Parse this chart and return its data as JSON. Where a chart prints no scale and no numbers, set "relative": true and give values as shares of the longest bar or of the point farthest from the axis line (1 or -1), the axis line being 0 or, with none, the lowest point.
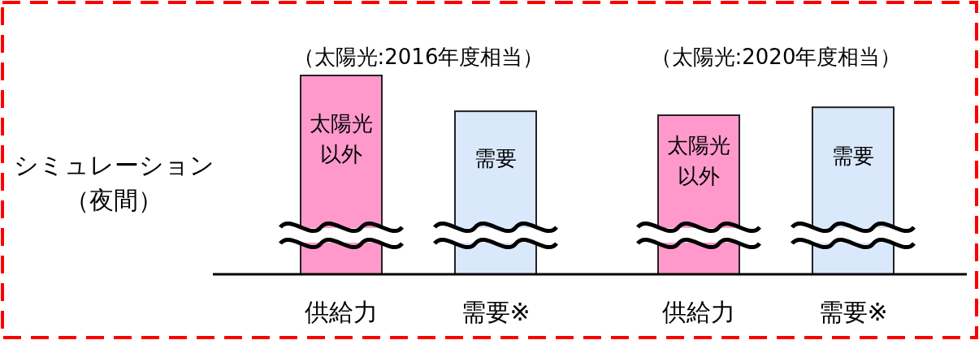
{
  "chart_data": {
    "type": "bar",
    "relative": true,
    "ylabel": "シミュレーション（夜間）",
    "categories": [
      "供給力",
      "需要※",
      "供給力",
      "需要※"
    ],
    "series": [
      {
        "name": "太陽光以外",
        "color": "#ff99cc",
        "values": [
          1,
          null,
          0.8,
          null
        ]
      },
      {
        "name": "需要",
        "color": "#dae8fc",
        "values": [
          null,
          0.82,
          null,
          0.84
        ]
      }
    ],
    "annotations": [
      "（太陽光:2016年度相当）",
      "（太陽光:2020年度相当）"
    ]
  }
}
